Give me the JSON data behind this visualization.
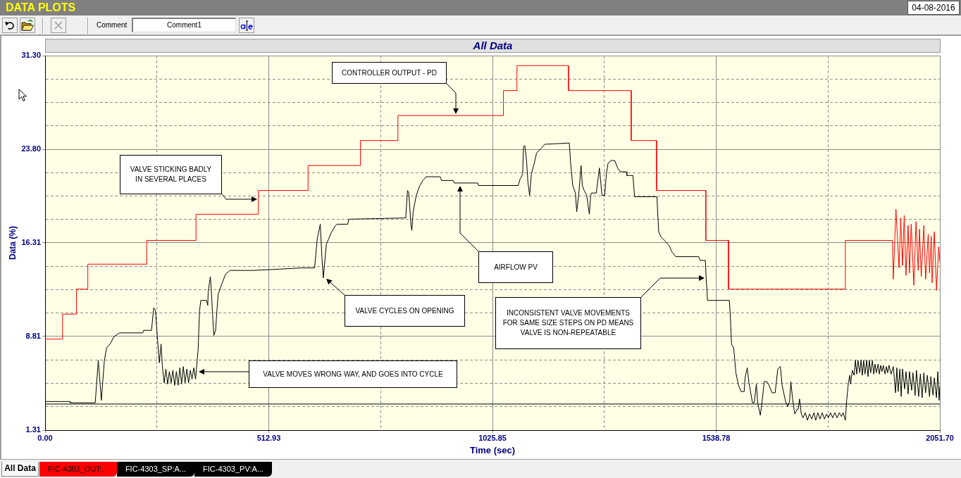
{
  "chart_data": {
    "type": "line",
    "title": "All Data",
    "xlabel": "Time (sec)",
    "ylabel": "Data (%)",
    "xlim": [
      0,
      2051.7
    ],
    "ylim": [
      1.31,
      31.3
    ],
    "xticks": [
      {
        "value": 0,
        "label": "0.00"
      },
      {
        "value": 256.46,
        "label": null
      },
      512.93,
      {
        "value": 769.39,
        "label": null
      },
      1025.85,
      {
        "value": 1282.31,
        "label": null
      },
      1538.78,
      {
        "value": 1795.24,
        "label": null
      },
      {
        "value": 2051.7,
        "label": "2051.70"
      }
    ],
    "yticks": [
      1.31,
      {
        "value": 3.19,
        "label": null
      },
      {
        "value": 5.06,
        "label": null
      },
      {
        "value": 6.94,
        "label": null
      },
      8.81,
      {
        "value": 10.69,
        "label": null
      },
      {
        "value": 12.56,
        "label": null
      },
      {
        "value": 14.44,
        "label": null
      },
      16.31,
      {
        "value": 18.18,
        "label": null
      },
      {
        "value": 20.06,
        "label": null
      },
      {
        "value": 21.93,
        "label": null
      },
      {
        "value": 23.8,
        "label": "23.80"
      },
      {
        "value": 25.68,
        "label": null
      },
      {
        "value": 27.55,
        "label": null
      },
      {
        "value": 29.43,
        "label": null
      },
      {
        "value": 31.3,
        "label": "31.30"
      }
    ],
    "grid": true,
    "legend": "bottom",
    "series": [
      {
        "name": "FIC-4303_OUT:...",
        "color": "#ff0000",
        "x": [
          0,
          40,
          40,
          72,
          72,
          98,
          98,
          233,
          233,
          346,
          346,
          489,
          489,
          603,
          603,
          723,
          723,
          809,
          809,
          1051,
          1051,
          1082,
          1082,
          1200,
          1200,
          1344,
          1344,
          1402,
          1402,
          1515,
          1515,
          1567,
          1567,
          1835,
          1835,
          1943,
          1945,
          1951,
          1958,
          1962,
          1966,
          1970,
          1974,
          1979,
          1982,
          1986,
          1992,
          1997,
          2002,
          2005,
          2009,
          2015,
          2019,
          2025,
          2028,
          2032,
          2034,
          2039,
          2044,
          2049,
          2051.7
        ],
        "values": [
          8.6,
          8.6,
          10.6,
          10.6,
          12.6,
          12.6,
          14.6,
          14.6,
          16.5,
          16.5,
          18.6,
          18.6,
          20.5,
          20.5,
          22.5,
          22.5,
          24.5,
          24.5,
          26.5,
          26.5,
          28.5,
          28.5,
          30.5,
          30.5,
          28.5,
          28.5,
          24.5,
          24.5,
          20.5,
          20.5,
          16.5,
          16.5,
          12.6,
          12.6,
          16.5,
          16.5,
          13.4,
          19.0,
          14.3,
          18.3,
          14.5,
          18.5,
          13.7,
          17.7,
          13.9,
          17.8,
          12.9,
          18.0,
          14.1,
          17.4,
          13.6,
          17.7,
          13.4,
          17.0,
          13.9,
          16.8,
          13.1,
          17.2,
          12.5,
          16.0,
          14.8
        ]
      },
      {
        "name": "FIC-4303_SP:A...",
        "color": "#000000",
        "x": [
          0,
          2051.7
        ],
        "values": [
          3.4,
          3.4
        ]
      },
      {
        "name": "FIC-4303_PV:A...",
        "color": "#000000",
        "x": [
          0,
          57,
          58,
          115,
          122,
          129,
          136,
          141,
          149,
          158,
          171,
          224,
          226,
          244,
          249,
          253,
          258,
          262,
          266,
          269,
          273,
          277,
          281,
          285,
          289,
          293,
          297,
          301,
          305,
          309,
          313,
          317,
          321,
          325,
          329,
          333,
          337,
          341,
          345,
          351,
          354,
          357,
          370,
          373,
          374,
          379,
          381,
          384,
          387,
          391,
          394,
          397,
          405,
          414,
          424,
          478,
          537,
          588,
          618,
          624,
          631,
          635,
          638,
          645,
          656,
          664,
          669,
          694,
          696,
          827,
          831,
          834,
          839,
          841,
          844,
          851,
          858,
          866,
          874,
          906,
          909,
          936,
          938,
          992,
          994,
          1085,
          1089,
          1095,
          1097,
          1100,
          1104,
          1107,
          1111,
          1115,
          1121,
          1127,
          1138,
          1146,
          1202,
          1205,
          1210,
          1216,
          1219,
          1224,
          1229,
          1232,
          1236,
          1242,
          1248,
          1251,
          1253,
          1264,
          1271,
          1277,
          1283,
          1287,
          1291,
          1298,
          1306,
          1313,
          1319,
          1333,
          1334,
          1348,
          1350,
          1352,
          1403,
          1405,
          1407,
          1412,
          1423,
          1431,
          1437,
          1446,
          1499,
          1502,
          1514,
          1516,
          1519,
          1569,
          1571,
          1574,
          1579,
          1584,
          1590,
          1596,
          1603,
          1605,
          1610,
          1614,
          1622,
          1626,
          1631,
          1634,
          1640,
          1644,
          1649,
          1655,
          1660,
          1667,
          1674,
          1680,
          1686,
          1690,
          1698,
          1703,
          1707,
          1710,
          1714,
          1719,
          1725,
          1727,
          1730,
          1734,
          1738,
          1743,
          1748,
          1753,
          1758,
          1763,
          1767,
          1772,
          1777,
          1782,
          1787,
          1792,
          1796,
          1801,
          1806,
          1811,
          1816,
          1821,
          1826,
          1830,
          1835,
          1838,
          1842,
          1845,
          1847,
          1851,
          1855,
          1858,
          1861,
          1864,
          1868,
          1871,
          1874,
          1877,
          1880,
          1884,
          1887,
          1890,
          1893,
          1897,
          1900,
          1903,
          1906,
          1910,
          1913,
          1916,
          1919,
          1922,
          1926,
          1929,
          1932,
          1935,
          1940,
          1945,
          1950,
          1953,
          1956,
          1960,
          1963,
          1966,
          1971,
          1974,
          1979,
          1982,
          1987,
          1990,
          1995,
          1998,
          2003,
          2007,
          2011,
          2015,
          2019,
          2023,
          2028,
          2031,
          2036,
          2039,
          2044,
          2047,
          2050,
          2051.7
        ],
        "values": [
          3.6,
          3.6,
          3.5,
          3.5,
          6.9,
          3.7,
          6.9,
          7.9,
          8.2,
          8.8,
          9.1,
          9.1,
          9.3,
          9.3,
          11.1,
          10.9,
          8.5,
          6.7,
          8.2,
          6.4,
          5.1,
          6.2,
          5.0,
          6.0,
          5.1,
          6.1,
          4.9,
          6.0,
          4.9,
          6.3,
          5.0,
          6.4,
          5.1,
          6.2,
          5.1,
          6.1,
          5.4,
          6.3,
          5.4,
          7.8,
          10.8,
          11.7,
          11.7,
          11.3,
          12.4,
          13.6,
          12.6,
          10.6,
          8.9,
          9.3,
          10.9,
          12.2,
          13.0,
          13.8,
          14.1,
          14.1,
          14.2,
          14.3,
          14.3,
          16.6,
          17.8,
          15.0,
          13.5,
          16.2,
          17.1,
          17.6,
          17.8,
          17.8,
          18.2,
          18.3,
          20.5,
          20.3,
          17.7,
          17.3,
          18.8,
          20.1,
          20.8,
          21.3,
          21.6,
          21.6,
          21.3,
          21.3,
          21.1,
          21.1,
          20.9,
          20.9,
          21.4,
          21.8,
          24.0,
          24.1,
          22.9,
          21.2,
          20.1,
          21.8,
          22.6,
          23.5,
          23.9,
          24.2,
          24.3,
          22.7,
          20.9,
          20.3,
          18.8,
          20.3,
          22.5,
          20.9,
          20.5,
          20.1,
          18.6,
          20.1,
          20.3,
          20.3,
          22.3,
          20.1,
          20.1,
          21.8,
          22.7,
          22.9,
          22.9,
          22.3,
          22.0,
          22.0,
          21.7,
          21.7,
          20.7,
          20.0,
          20.0,
          18.5,
          17.2,
          16.8,
          16.4,
          16.1,
          15.6,
          15.2,
          15.2,
          14.9,
          14.9,
          13.4,
          11.7,
          11.7,
          10.6,
          8.2,
          7.9,
          5.9,
          4.9,
          4.4,
          4.4,
          5.5,
          6.3,
          5.1,
          3.5,
          3.5,
          5.0,
          3.5,
          2.5,
          3.6,
          5.2,
          5.2,
          4.9,
          4.3,
          4.3,
          6.2,
          6.4,
          4.9,
          3.6,
          3.2,
          3.6,
          5.2,
          3.8,
          2.6,
          3.0,
          3.0,
          3.8,
          2.6,
          2.3,
          2.7,
          2.1,
          2.6,
          2.2,
          2.7,
          2.1,
          2.7,
          2.2,
          2.7,
          2.2,
          2.6,
          2.3,
          2.7,
          2.3,
          2.7,
          2.3,
          2.7,
          2.4,
          2.7,
          2.1,
          3.7,
          5.1,
          5.7,
          5.0,
          6.1,
          5.7,
          6.9,
          5.8,
          6.9,
          5.9,
          6.9,
          5.7,
          6.9,
          5.8,
          6.9,
          5.6,
          6.9,
          5.9,
          6.9,
          5.8,
          6.6,
          5.9,
          6.6,
          5.8,
          6.5,
          6.0,
          6.5,
          5.8,
          6.4,
          5.9,
          6.5,
          5.8,
          6.4,
          4.3,
          6.3,
          4.4,
          6.2,
          4.0,
          6.2,
          4.6,
          6.0,
          4.2,
          6.0,
          4.5,
          5.9,
          4.1,
          6.1,
          4.0,
          5.8,
          3.9,
          5.9,
          4.3,
          5.7,
          4.0,
          5.6,
          4.1,
          5.5,
          3.9,
          6.0,
          3.7,
          4.8
        ]
      }
    ],
    "annotations": [
      "DATA PLOTS",
      "04-08-2016",
      "Comment",
      "Comment1",
      "All Data",
      "CONTROLLER OUTPUT - PD",
      "VALVE STICKING BADLY IN SEVERAL PLACES",
      "AIRFLOW PV",
      "VALVE CYCLES ON OPENING",
      "INCONSISTENT VALVE MOVEMENTS FOR SAME SIZE STEPS ON PD MEANS VALVE IS NON-REPEATABLE",
      "VALVE MOVES WRONG WAY, AND GOES INTO CYCLE"
    ]
  }
}
